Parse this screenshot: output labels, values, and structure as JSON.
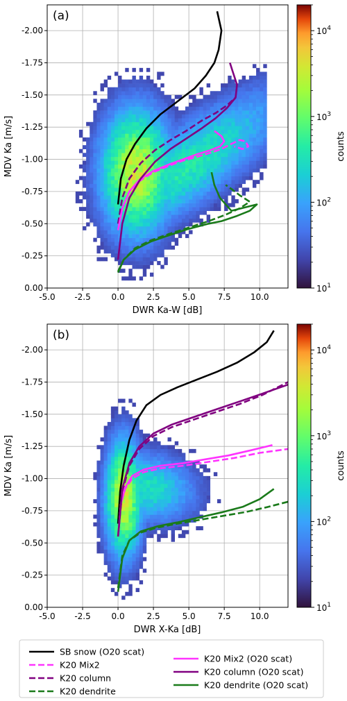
{
  "chart_data": [
    {
      "type": "heatmap",
      "panel_label": "(a)",
      "xlabel": "DWR Ka-W  [dB]",
      "ylabel": "MDV  Ka  [m/s]",
      "xlim": [
        -5.0,
        12.0
      ],
      "ylim": [
        0.0,
        -2.2
      ],
      "xticks": [
        "-5.0",
        "-2.5",
        "0.0",
        "2.5",
        "5.0",
        "7.5",
        "10.0"
      ],
      "yticks": [
        "0.00",
        "-0.25",
        "-0.50",
        "-0.75",
        "-1.00",
        "-1.25",
        "-1.50",
        "-1.75",
        "-2.00"
      ],
      "grid": true,
      "colorbar": {
        "label": "counts",
        "scale": "log",
        "range": [
          10,
          20000
        ],
        "tick_labels": [
          "10^1",
          "10^2",
          "10^3",
          "10^4"
        ]
      },
      "series": [
        {
          "name": "SB snow (O20 scat)",
          "color": "#000000",
          "dash": false,
          "x": [
            0.0,
            0.2,
            0.6,
            1.2,
            2.0,
            3.0,
            4.2,
            5.4,
            6.2,
            6.8,
            7.1,
            7.3,
            7.0
          ],
          "y": [
            -0.65,
            -0.85,
            -1.0,
            -1.12,
            -1.24,
            -1.35,
            -1.45,
            -1.55,
            -1.65,
            -1.75,
            -1.85,
            -2.0,
            -2.15
          ]
        },
        {
          "name": "K20 Mix2",
          "color": "#ff33ff",
          "dash": true,
          "x": [
            0.0,
            0.3,
            0.8,
            1.5,
            2.5,
            3.6,
            4.6,
            5.6,
            6.5,
            7.3,
            8.0,
            8.6,
            9.0,
            9.2,
            8.8,
            8.2
          ],
          "y": [
            -0.45,
            -0.62,
            -0.75,
            -0.83,
            -0.9,
            -0.95,
            -0.99,
            -1.02,
            -1.05,
            -1.08,
            -1.12,
            -1.15,
            -1.14,
            -1.1,
            -1.08,
            -1.1
          ]
        },
        {
          "name": "K20 column",
          "color": "#800080",
          "dash": true,
          "x": [
            0.0,
            0.3,
            0.8,
            1.6,
            2.6,
            3.7,
            4.8,
            5.9,
            6.9,
            7.7,
            8.3
          ],
          "y": [
            -0.5,
            -0.7,
            -0.85,
            -0.97,
            -1.07,
            -1.15,
            -1.22,
            -1.3,
            -1.36,
            -1.42,
            -1.48
          ]
        },
        {
          "name": "K20 dendrite",
          "color": "#1a7a1a",
          "dash": true,
          "x": [
            0.0,
            0.4,
            1.2,
            2.3,
            3.6,
            5.0,
            6.4,
            7.6,
            8.6,
            9.3,
            8.6,
            8.0,
            7.6
          ],
          "y": [
            -0.13,
            -0.22,
            -0.31,
            -0.37,
            -0.42,
            -0.47,
            -0.52,
            -0.57,
            -0.62,
            -0.67,
            -0.72,
            -0.77,
            -0.8
          ]
        },
        {
          "name": "K20 Mix2 (O20 scat)",
          "color": "#ff33ff",
          "dash": false,
          "x": [
            0.0,
            0.3,
            0.8,
            1.5,
            2.5,
            3.6,
            4.6,
            5.6,
            6.5,
            7.2,
            7.5,
            7.3,
            6.8
          ],
          "y": [
            -0.45,
            -0.62,
            -0.75,
            -0.84,
            -0.91,
            -0.96,
            -1.0,
            -1.04,
            -1.07,
            -1.1,
            -1.14,
            -1.18,
            -1.22
          ]
        },
        {
          "name": "K20 column (O20 scat)",
          "color": "#800080",
          "dash": false,
          "x": [
            0.0,
            0.3,
            0.8,
            1.6,
            2.6,
            3.7,
            4.8,
            5.9,
            6.9,
            7.7,
            8.3,
            8.4,
            8.1,
            7.9
          ],
          "y": [
            -0.22,
            -0.5,
            -0.7,
            -0.85,
            -0.98,
            -1.08,
            -1.16,
            -1.24,
            -1.32,
            -1.4,
            -1.48,
            -1.58,
            -1.68,
            -1.75
          ]
        },
        {
          "name": "K20 dendrite (O20 scat)",
          "color": "#1a7a1a",
          "dash": false,
          "x": [
            0.0,
            0.4,
            1.2,
            2.3,
            3.6,
            5.0,
            6.4,
            7.3,
            8.4,
            9.3,
            9.8,
            8.0,
            7.2,
            6.8,
            6.6
          ],
          "y": [
            -0.12,
            -0.22,
            -0.3,
            -0.36,
            -0.41,
            -0.46,
            -0.5,
            -0.52,
            -0.56,
            -0.6,
            -0.65,
            -0.6,
            -0.7,
            -0.8,
            -0.9
          ]
        }
      ]
    },
    {
      "type": "heatmap",
      "panel_label": "(b)",
      "xlabel": "DWR X-Ka  [dB]",
      "ylabel": "MDV  Ka  [m/s]",
      "xlim": [
        -5.0,
        12.0
      ],
      "ylim": [
        0.0,
        -2.2
      ],
      "xticks": [
        "-5.0",
        "-2.5",
        "0.0",
        "2.5",
        "5.0",
        "7.5",
        "10.0"
      ],
      "yticks": [
        "0.00",
        "-0.25",
        "-0.50",
        "-0.75",
        "-1.00",
        "-1.25",
        "-1.50",
        "-1.75",
        "-2.00"
      ],
      "grid": true,
      "colorbar": {
        "label": "counts",
        "scale": "log",
        "range": [
          10,
          20000
        ],
        "tick_labels": [
          "10^1",
          "10^2",
          "10^3",
          "10^4"
        ]
      },
      "series": [
        {
          "name": "SB snow (O20 scat)",
          "color": "#000000",
          "dash": false,
          "x": [
            0.0,
            0.15,
            0.4,
            0.8,
            1.3,
            2.0,
            3.0,
            4.2,
            5.6,
            7.0,
            8.4,
            9.6,
            10.5,
            11.0
          ],
          "y": [
            -0.65,
            -0.9,
            -1.1,
            -1.3,
            -1.45,
            -1.57,
            -1.65,
            -1.71,
            -1.77,
            -1.83,
            -1.9,
            -1.98,
            -2.06,
            -2.15
          ]
        },
        {
          "name": "K20 Mix2",
          "color": "#ff33ff",
          "dash": true,
          "x": [
            0.0,
            0.2,
            0.5,
            1.0,
            1.8,
            3.0,
            4.6,
            6.4,
            8.2,
            10.0,
            12.0
          ],
          "y": [
            -0.55,
            -0.8,
            -0.92,
            -1.0,
            -1.05,
            -1.08,
            -1.1,
            -1.13,
            -1.16,
            -1.2,
            -1.23
          ]
        },
        {
          "name": "K20 column",
          "color": "#800080",
          "dash": true,
          "x": [
            0.0,
            0.3,
            0.8,
            1.5,
            2.5,
            3.8,
            5.4,
            7.0,
            8.6,
            10.2,
            12.0
          ],
          "y": [
            -0.55,
            -0.9,
            -1.1,
            -1.23,
            -1.33,
            -1.4,
            -1.46,
            -1.52,
            -1.58,
            -1.65,
            -1.75
          ]
        },
        {
          "name": "K20 dendrite",
          "color": "#1a7a1a",
          "dash": true,
          "x": [
            0.0,
            0.3,
            0.8,
            1.6,
            2.8,
            4.2,
            5.8,
            7.4,
            9.0,
            10.6,
            12.0
          ],
          "y": [
            -0.15,
            -0.4,
            -0.52,
            -0.58,
            -0.62,
            -0.65,
            -0.68,
            -0.71,
            -0.74,
            -0.78,
            -0.82
          ]
        },
        {
          "name": "K20 Mix2 (O20 scat)",
          "color": "#ff33ff",
          "dash": false,
          "x": [
            0.0,
            0.2,
            0.5,
            1.0,
            1.8,
            3.0,
            4.6,
            6.2,
            7.8,
            9.4,
            10.9
          ],
          "y": [
            -0.55,
            -0.8,
            -0.93,
            -1.02,
            -1.07,
            -1.1,
            -1.12,
            -1.15,
            -1.18,
            -1.22,
            -1.26
          ]
        },
        {
          "name": "K20 column (O20 scat)",
          "color": "#800080",
          "dash": false,
          "x": [
            0.0,
            0.3,
            0.8,
            1.5,
            2.5,
            3.8,
            5.4,
            7.0,
            8.6,
            10.2,
            12.0
          ],
          "y": [
            -0.55,
            -0.92,
            -1.12,
            -1.25,
            -1.35,
            -1.42,
            -1.48,
            -1.54,
            -1.6,
            -1.66,
            -1.73
          ]
        },
        {
          "name": "K20 dendrite (O20 scat)",
          "color": "#1a7a1a",
          "dash": false,
          "x": [
            0.0,
            0.3,
            0.8,
            1.6,
            2.8,
            4.2,
            5.8,
            7.4,
            8.8,
            10.0,
            11.0
          ],
          "y": [
            -0.12,
            -0.38,
            -0.52,
            -0.59,
            -0.63,
            -0.66,
            -0.7,
            -0.74,
            -0.78,
            -0.84,
            -0.92
          ]
        }
      ]
    }
  ],
  "legend": {
    "placement": "bottom",
    "entries": [
      "SB snow (O20 scat)",
      "K20 Mix2",
      "K20 column",
      "K20 dendrite",
      "K20 Mix2 (O20 scat)",
      "K20 column (O20 scat)",
      "K20 dendrite (O20 scat)"
    ]
  }
}
